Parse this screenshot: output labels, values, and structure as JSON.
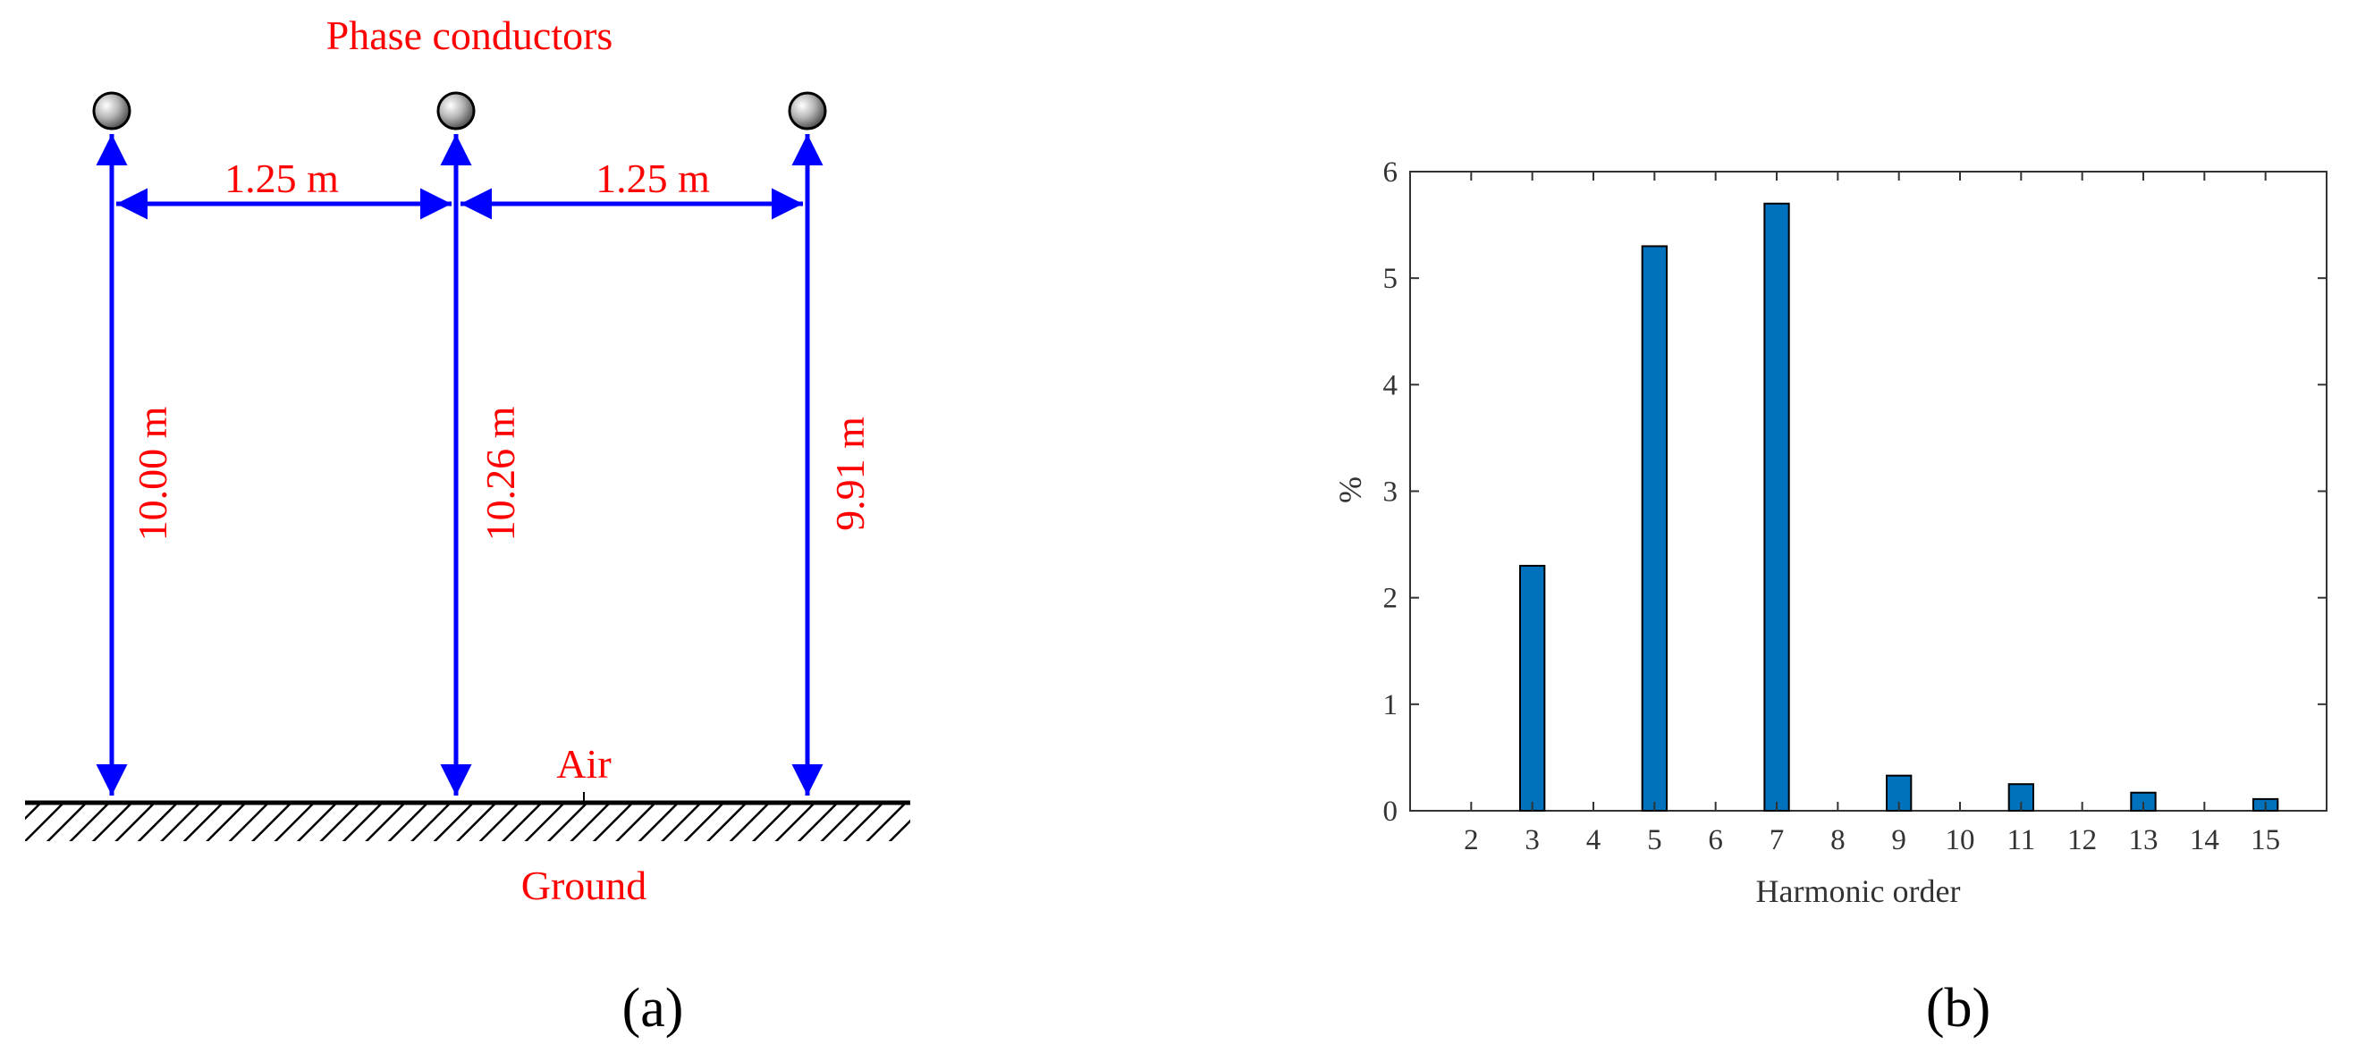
{
  "colors": {
    "annotation": "#ff0000",
    "dimension_arrows": "#0000ff",
    "bars": "#0072bd",
    "axes": "#333333"
  },
  "panel_a": {
    "label": "(a)",
    "title": "Phase conductors",
    "spacing_left": "1.25 m",
    "spacing_right": "1.25 m",
    "height_left": "10.00 m",
    "height_middle": "10.26 m",
    "height_right": "9.91 m",
    "air_label": "Air",
    "ground_label": "Ground",
    "conductor_icon": "sphere-icon"
  },
  "panel_b": {
    "label": "(b)"
  },
  "chart_data": {
    "type": "bar",
    "xlabel": "Harmonic order",
    "ylabel": "%",
    "categories": [
      "2",
      "3",
      "4",
      "5",
      "6",
      "7",
      "8",
      "9",
      "10",
      "11",
      "12",
      "13",
      "14",
      "15"
    ],
    "values": [
      0,
      2.3,
      0,
      5.3,
      0,
      5.7,
      0,
      0.33,
      0,
      0.25,
      0,
      0.17,
      0,
      0.11
    ],
    "ylim": [
      0,
      6
    ],
    "yticks": [
      0,
      1,
      2,
      3,
      4,
      5,
      6
    ],
    "grid": false,
    "legend": "none"
  }
}
